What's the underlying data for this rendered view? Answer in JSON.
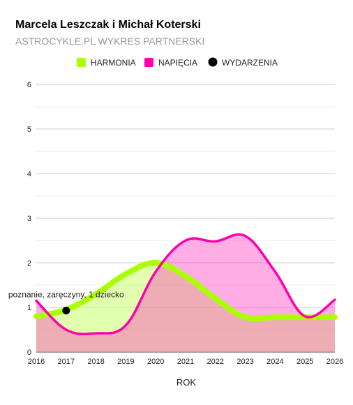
{
  "chart_data": {
    "type": "area",
    "title": "Marcela Leszczak i Michał Koterski",
    "subtitle": "ASTROCYKLE.PL WYKRES PARTNERSKI",
    "xlabel": "ROK",
    "ylabel": "",
    "ylim": [
      0,
      6
    ],
    "y_ticks": [
      "0",
      "1",
      "2",
      "3",
      "4",
      "5",
      "6"
    ],
    "x": [
      2016,
      2017,
      2018,
      2019,
      2020,
      2021,
      2022,
      2023,
      2024,
      2025,
      2026
    ],
    "x_tick_labels": [
      "2016",
      "2017",
      "2018",
      "2019",
      "2020",
      "2021",
      "2022",
      "2023",
      "2024",
      "2025",
      "2026"
    ],
    "grid": true,
    "legend_position": "top",
    "series": [
      {
        "name": "HARMONIA",
        "color": "#aaff00",
        "values": [
          0.8,
          0.95,
          1.3,
          1.75,
          2.0,
          1.7,
          1.2,
          0.78,
          0.78,
          0.78,
          0.78
        ]
      },
      {
        "name": "NAPIĘCIA",
        "color": "#ff00aa",
        "values": [
          1.15,
          0.5,
          0.42,
          0.6,
          1.8,
          2.5,
          2.48,
          2.6,
          1.8,
          0.8,
          1.17
        ]
      }
    ],
    "events": {
      "name": "WYDARZENIA",
      "color": "#000000",
      "points": [
        {
          "x": 2017,
          "y": 0.93,
          "label": "poznanie, zaręczyny, 1 dziecko"
        }
      ]
    }
  }
}
